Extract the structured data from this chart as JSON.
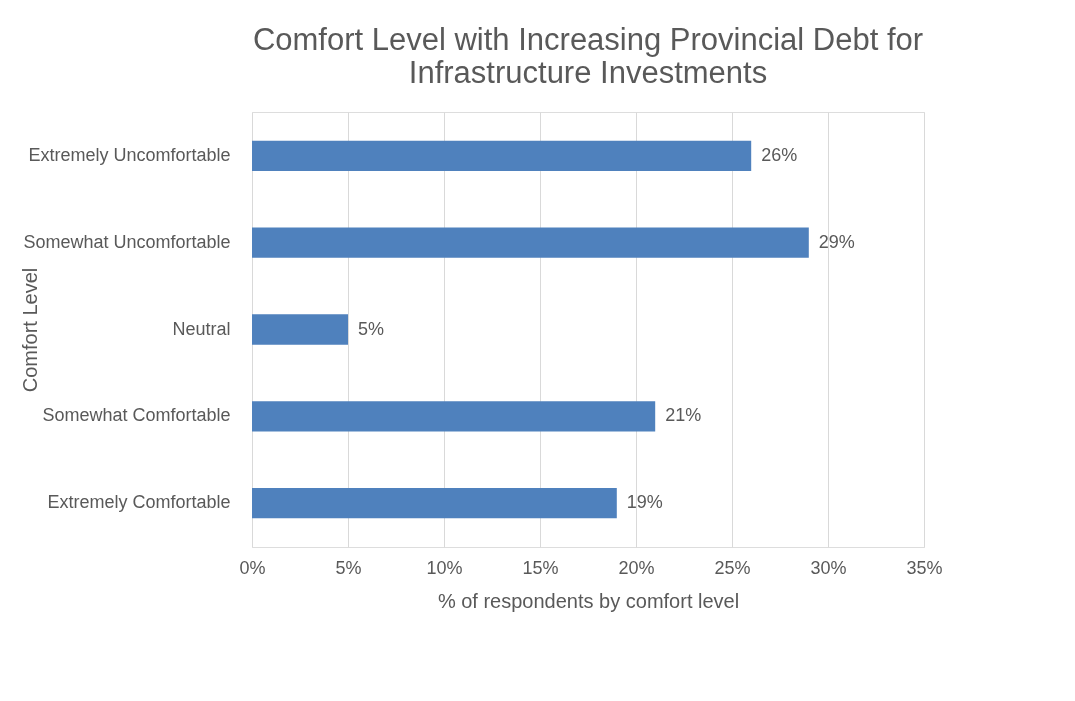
{
  "chart_data": {
    "type": "bar",
    "orientation": "horizontal",
    "title": "Comfort Level with Increasing Provincial Debt for Infrastructure Investments",
    "xlabel": "% of respondents by comfort level",
    "ylabel": "Comfort Level",
    "categories": [
      "Extremely Uncomfortable",
      "Somewhat Uncomfortable",
      "Neutral",
      "Somewhat Comfortable",
      "Extremely Comfortable"
    ],
    "values": [
      26,
      29,
      5,
      21,
      19
    ],
    "value_labels": [
      "26%",
      "29%",
      "5%",
      "21%",
      "19%"
    ],
    "color": "#4f81bd",
    "xlim": [
      0,
      35
    ],
    "xticks": [
      {
        "value": 0,
        "label": "0%"
      },
      {
        "value": 5,
        "label": "5%"
      },
      {
        "value": 10,
        "label": "10%"
      },
      {
        "value": 15,
        "label": "15%"
      },
      {
        "value": 20,
        "label": "20%"
      },
      {
        "value": 25,
        "label": "25%"
      },
      {
        "value": 30,
        "label": "30%"
      },
      {
        "value": 35,
        "label": "35%"
      }
    ],
    "grid": "x"
  }
}
